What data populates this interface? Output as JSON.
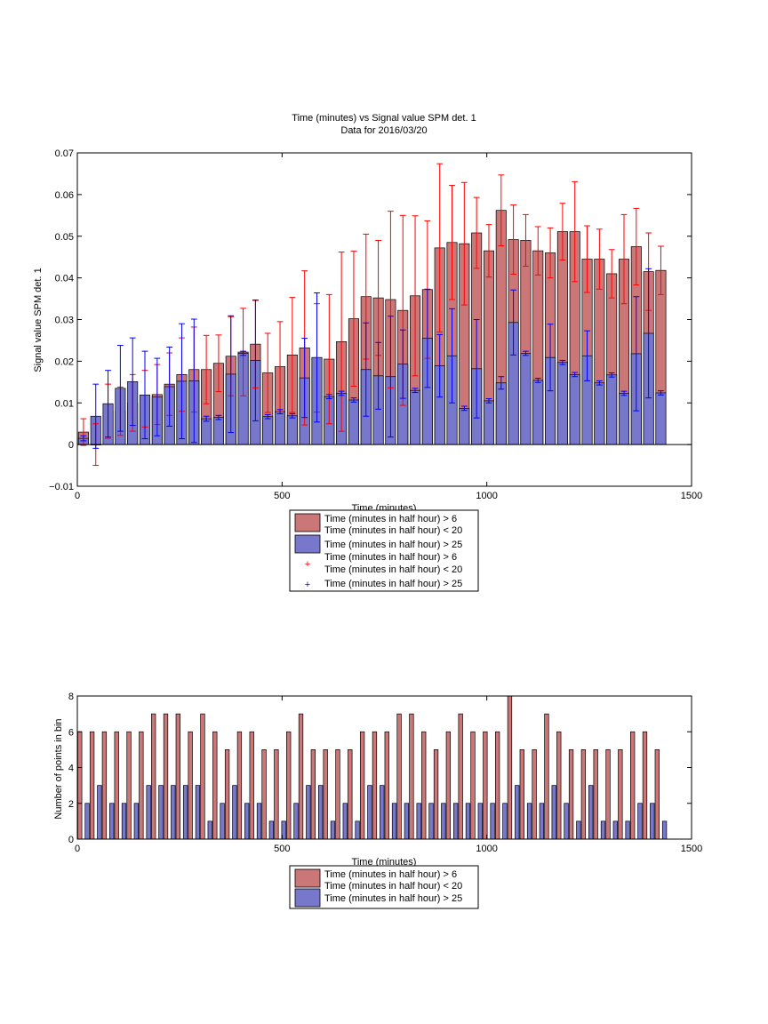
{
  "colors": {
    "red": "#cc7777",
    "red_err": "#ff0000",
    "blue": "#7777cc",
    "blue_err": "#0000ff"
  },
  "chart_data": [
    {
      "type": "bar",
      "title": "Time (minutes) vs Signal value SPM det. 1",
      "subtitle": "Data for 2016/03/20",
      "xlabel": "Time (minutes)",
      "ylabel": "Signal value SPM det. 1",
      "xlim": [
        0,
        1500
      ],
      "ylim": [
        -0.01,
        0.07
      ],
      "xticks": [
        "0",
        "500",
        "1000",
        "1500"
      ],
      "yticks": [
        "−0.01",
        "0",
        "0.01",
        "0.02",
        "0.03",
        "0.04",
        "0.05",
        "0.06",
        "0.07"
      ],
      "grid": false,
      "legend": {
        "placement": "below",
        "entries": [
          {
            "marker": "patch",
            "color": "red",
            "lines": [
              "Time (minutes in half hour) > 6",
              "Time (minutes in half hour) < 20"
            ]
          },
          {
            "marker": "patch",
            "color": "blue",
            "lines": [
              "Time (minutes in half hour) > 25"
            ]
          },
          {
            "marker": "plus",
            "color": "red_err",
            "lines": [
              "Time (minutes in half hour) > 6",
              "Time (minutes in half hour) < 20"
            ]
          },
          {
            "marker": "plus",
            "color": "blue_err",
            "lines": [
              "Time (minutes in half hour) > 25"
            ]
          }
        ]
      },
      "series": [
        {
          "x": [
            15,
            45,
            75,
            105,
            135,
            165,
            195,
            225,
            255,
            285,
            315,
            345,
            375,
            405,
            435,
            465,
            495,
            525,
            555,
            585,
            615,
            645,
            675,
            705,
            735,
            765,
            795,
            825,
            855,
            885,
            915,
            945,
            975,
            1005,
            1035,
            1065,
            1095,
            1125,
            1155,
            1185,
            1215,
            1245,
            1275,
            1305,
            1335,
            1365,
            1395,
            1425
          ],
          "values": [
            0.003,
            0.0,
            0.008,
            0.008,
            0.01,
            0.011,
            0.012,
            0.0145,
            0.0168,
            0.018,
            0.018,
            0.0195,
            0.0212,
            0.0222,
            0.0241,
            0.0172,
            0.0187,
            0.0215,
            0.0232,
            0.0208,
            0.0205,
            0.0247,
            0.0302,
            0.0355,
            0.0352,
            0.0348,
            0.0322,
            0.0357,
            0.0372,
            0.0472,
            0.0485,
            0.0482,
            0.0508,
            0.0465,
            0.0562,
            0.0492,
            0.049,
            0.0465,
            0.046,
            0.0511,
            0.0511,
            0.0445,
            0.0445,
            0.041,
            0.0445,
            0.0475,
            0.0415,
            0.0418
          ],
          "err": [
            0.0032,
            0.005,
            0.0065,
            0.0058,
            0.0068,
            0.0068,
            0.0072,
            0.0075,
            0.0088,
            0.0102,
            0.0082,
            0.0068,
            0.0095,
            0.0105,
            0.0105,
            0.0095,
            0.0108,
            0.0138,
            0.0185,
            0.013,
            0.0155,
            0.0215,
            0.0162,
            0.015,
            0.0138,
            0.0212,
            0.0228,
            0.0192,
            0.0165,
            0.0202,
            0.0137,
            0.0147,
            0.0085,
            0.0063,
            0.0085,
            0.0083,
            0.0062,
            0.0058,
            0.006,
            0.0068,
            0.012,
            0.008,
            0.0072,
            0.0058,
            0.0107,
            0.0092,
            0.0093,
            0.0058
          ]
        },
        {
          "x": [
            15,
            45,
            75,
            105,
            135,
            165,
            195,
            225,
            255,
            285,
            315,
            345,
            375,
            405,
            435,
            465,
            495,
            525,
            555,
            585,
            615,
            645,
            675,
            705,
            735,
            765,
            795,
            825,
            855,
            885,
            915,
            945,
            975,
            1005,
            1035,
            1065,
            1095,
            1125,
            1155,
            1185,
            1215,
            1245,
            1275,
            1305,
            1335,
            1365,
            1395,
            1425
          ],
          "values": [
            0.0015,
            0.0068,
            0.0098,
            0.0135,
            0.0151,
            0.0119,
            0.0114,
            0.0139,
            0.0152,
            0.0153,
            0.0062,
            0.0065,
            0.0169,
            0.0219,
            0.0202,
            0.0067,
            0.0079,
            0.0069,
            0.016,
            0.0209,
            0.0115,
            0.0123,
            0.0107,
            0.018,
            0.0165,
            0.0163,
            0.0193,
            0.013,
            0.0255,
            0.0189,
            0.0213,
            0.0087,
            0.0182,
            0.0105,
            0.0148,
            0.0293,
            0.0219,
            0.0154,
            0.0209,
            0.0197,
            0.0168,
            0.0213,
            0.0148,
            0.0167,
            0.0123,
            0.0218,
            0.0267,
            0.0124
          ],
          "err": [
            0.0006,
            0.0077,
            0.008,
            0.0103,
            0.0105,
            0.0105,
            0.0093,
            0.0095,
            0.0138,
            0.0148,
            0.0006,
            0.0005,
            0.014,
            0.0005,
            0.0145,
            0.0005,
            0.0005,
            0.0005,
            0.0095,
            0.0155,
            0.0005,
            0.0005,
            0.0005,
            0.0112,
            0.008,
            0.0145,
            0.0082,
            0.0005,
            0.0118,
            0.0075,
            0.0113,
            0.0005,
            0.0118,
            0.0005,
            0.0015,
            0.0078,
            0.0005,
            0.0005,
            0.008,
            0.0005,
            0.0005,
            0.006,
            0.0005,
            0.0005,
            0.0005,
            0.0137,
            0.0155,
            0.0005
          ]
        }
      ]
    },
    {
      "type": "bar",
      "title": "",
      "xlabel": "Time (minutes)",
      "ylabel": "Number of points in bin",
      "xlim": [
        0,
        1500
      ],
      "ylim": [
        0,
        8
      ],
      "xticks": [
        "0",
        "500",
        "1000",
        "1500"
      ],
      "yticks": [
        "0",
        "2",
        "4",
        "6",
        "8"
      ],
      "grid": false,
      "legend": {
        "placement": "below",
        "entries": [
          {
            "marker": "patch",
            "color": "red",
            "lines": [
              "Time (minutes in half hour) > 6",
              "Time (minutes in half hour) < 20"
            ]
          },
          {
            "marker": "patch",
            "color": "blue",
            "lines": [
              "Time (minutes in half hour) > 25"
            ]
          }
        ]
      },
      "series": [
        {
          "x": [
            6,
            36,
            66,
            96,
            126,
            156,
            186,
            216,
            246,
            276,
            306,
            336,
            366,
            396,
            426,
            456,
            486,
            516,
            546,
            576,
            606,
            636,
            666,
            696,
            726,
            756,
            786,
            816,
            846,
            876,
            906,
            936,
            966,
            996,
            1026,
            1056,
            1086,
            1116,
            1146,
            1176,
            1206,
            1236,
            1266,
            1296,
            1326,
            1356,
            1386,
            1416
          ],
          "values": [
            6,
            6,
            6,
            6,
            6,
            6,
            7,
            7,
            7,
            6,
            7,
            6,
            5,
            6,
            6,
            5,
            5,
            6,
            7,
            5,
            5,
            5,
            5,
            6,
            6,
            6,
            7,
            7,
            6,
            5,
            6,
            7,
            6,
            6,
            6,
            8,
            5,
            5,
            7,
            6,
            5,
            5,
            5,
            5,
            5,
            6,
            6,
            5
          ]
        },
        {
          "x": [
            24,
            54,
            84,
            114,
            144,
            174,
            204,
            234,
            264,
            294,
            324,
            354,
            384,
            414,
            444,
            474,
            504,
            534,
            564,
            594,
            624,
            654,
            684,
            714,
            744,
            774,
            804,
            834,
            864,
            894,
            924,
            954,
            984,
            1014,
            1044,
            1074,
            1104,
            1134,
            1164,
            1194,
            1224,
            1254,
            1284,
            1314,
            1344,
            1374,
            1404,
            1434
          ],
          "values": [
            2,
            3,
            2,
            2,
            2,
            3,
            3,
            3,
            3,
            3,
            1,
            2,
            3,
            2,
            2,
            1,
            1,
            2,
            3,
            3,
            1,
            2,
            1,
            3,
            3,
            2,
            2,
            2,
            2,
            2,
            2,
            2,
            2,
            2,
            2,
            3,
            2,
            2,
            3,
            2,
            1,
            3,
            1,
            1,
            1,
            2,
            2,
            1
          ]
        }
      ]
    }
  ]
}
